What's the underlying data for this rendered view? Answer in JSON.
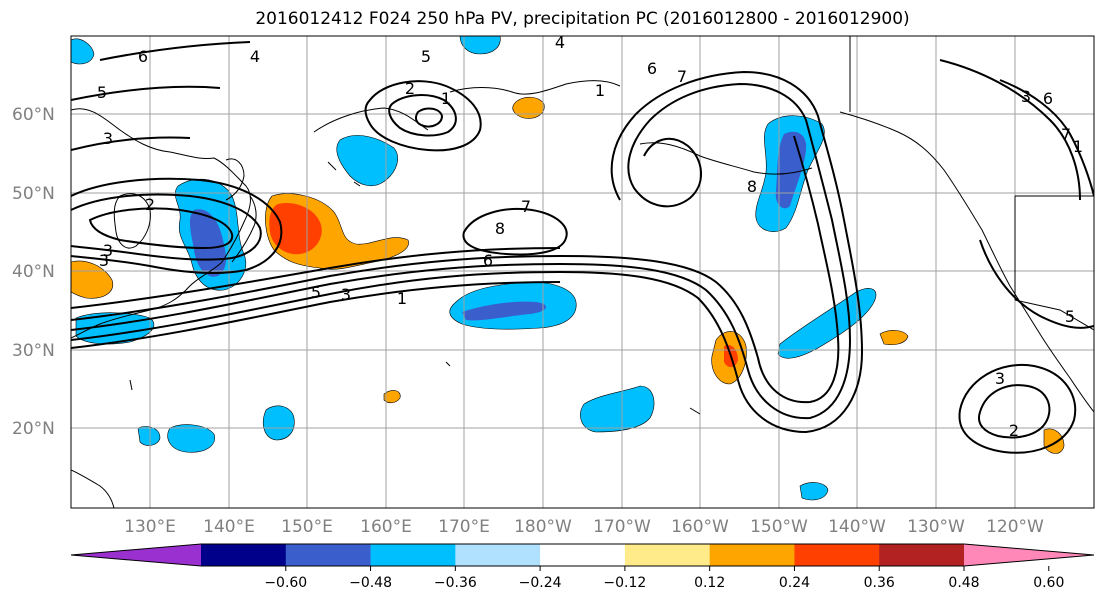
{
  "title": "2016012412 F024 250 hPa PV, precipitation PC (2016012800 - 2016012900)",
  "lat_labels": [
    "60°N",
    "50°N",
    "40°N",
    "30°N",
    "20°N"
  ],
  "lon_labels": [
    "130°E",
    "140°E",
    "150°E",
    "160°E",
    "170°E",
    "180°W",
    "170°W",
    "160°W",
    "150°W",
    "140°W",
    "130°W",
    "120°W"
  ],
  "contour_labels": [
    "6",
    "4",
    "5",
    "5",
    "3",
    "2",
    "1",
    "2",
    "3",
    "6",
    "7",
    "8",
    "6",
    "5",
    "3",
    "1",
    "7",
    "8",
    "4",
    "3",
    "6",
    "7",
    "2",
    "3",
    "5",
    "1",
    "3",
    "1"
  ],
  "colorbar": {
    "ticks": [
      "−0.60",
      "−0.48",
      "−0.36",
      "−0.24",
      "−0.12",
      "0.12",
      "0.24",
      "0.36",
      "0.48",
      "0.60"
    ],
    "colors": [
      "#9b30d0",
      "#00008b",
      "#3a5fcd",
      "#00bfff",
      "#b0e2ff",
      "#ffffff",
      "#ffeb8a",
      "#ffa500",
      "#ff4000",
      "#b22222",
      "#ff88b8"
    ]
  },
  "colors": {
    "neg_strong": "#3a5fcd",
    "neg_mid": "#00bfff",
    "pos_mid": "#ffa500",
    "pos_strong": "#ff4000",
    "grid": "#a0a0a0",
    "contour": "#000000"
  }
}
